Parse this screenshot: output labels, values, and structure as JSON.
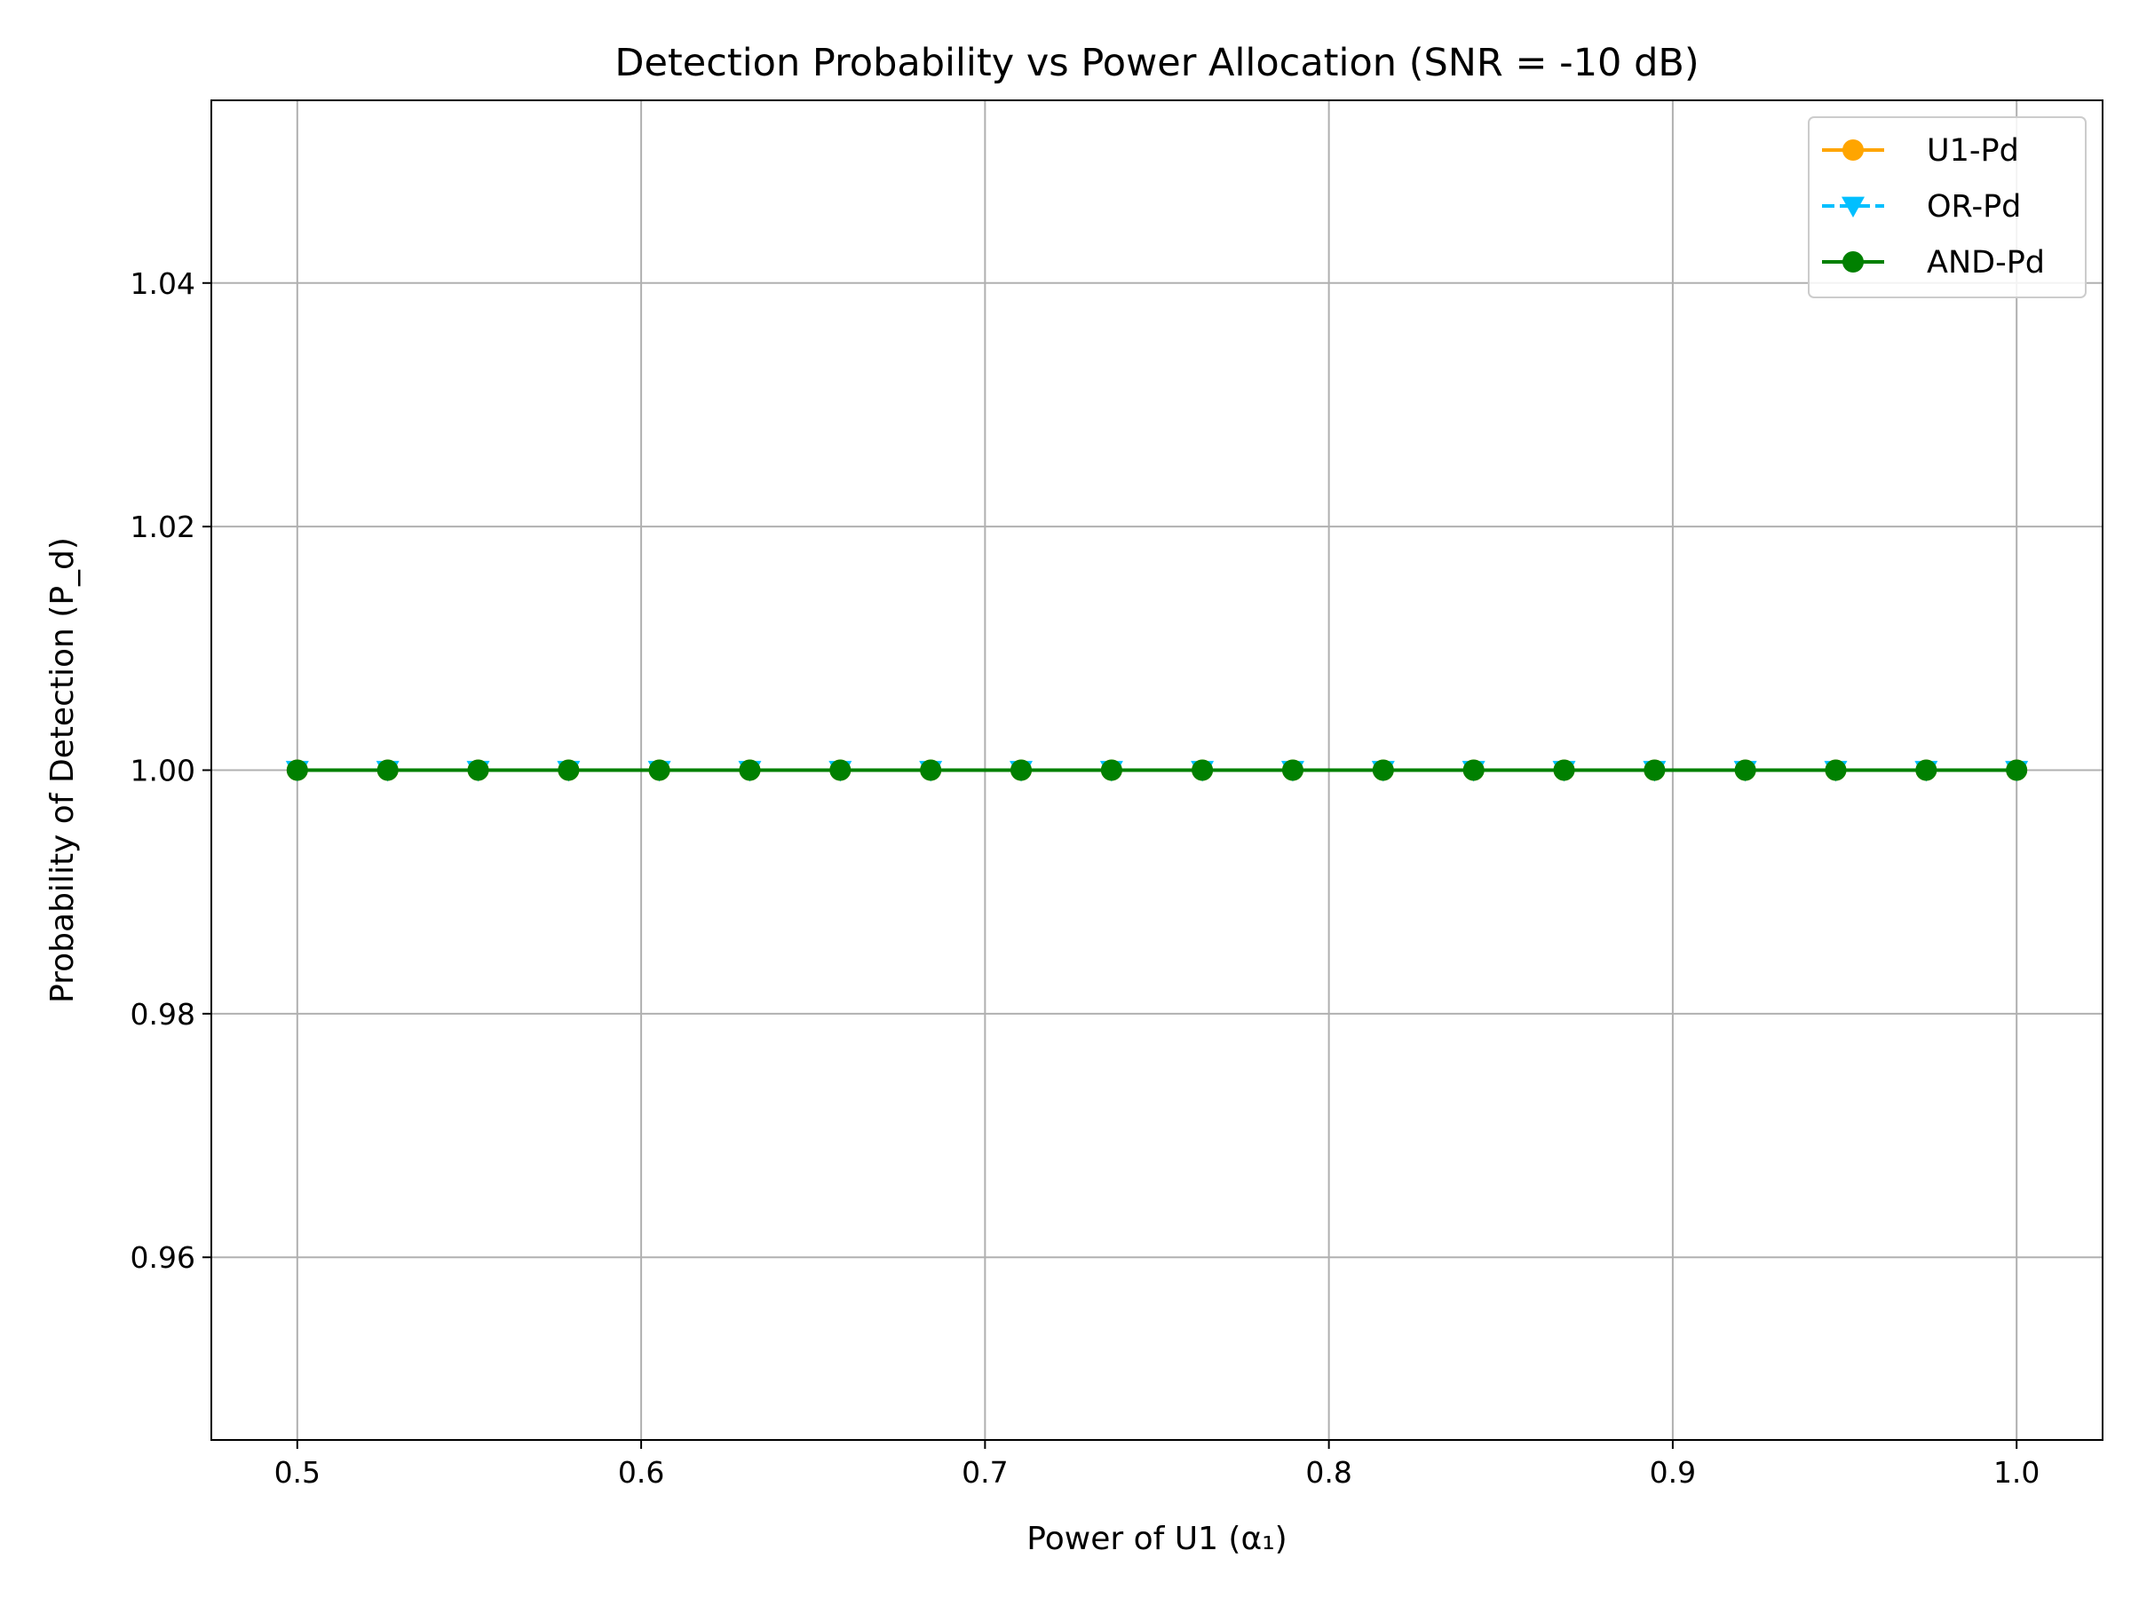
{
  "chart_data": {
    "type": "line",
    "title": "Detection Probability vs Power Allocation (SNR = -10 dB)",
    "xlabel": "Power of U1 (α₁)",
    "ylabel": "Probability of Detection (P_d)",
    "xlim": [
      0.475,
      1.025
    ],
    "ylim": [
      0.945,
      1.055
    ],
    "xticks": [
      0.5,
      0.6,
      0.7,
      0.8,
      0.9,
      1.0
    ],
    "xtick_labels": [
      "0.5",
      "0.6",
      "0.7",
      "0.8",
      "0.9",
      "1.0"
    ],
    "yticks": [
      0.96,
      0.98,
      1.0,
      1.02,
      1.04
    ],
    "ytick_labels": [
      "0.96",
      "0.98",
      "1.00",
      "1.02",
      "1.04"
    ],
    "grid": true,
    "legend_position": "top-right",
    "x": [
      0.5,
      0.5263,
      0.5526,
      0.5789,
      0.6053,
      0.6316,
      0.6579,
      0.6842,
      0.7105,
      0.7368,
      0.7632,
      0.7895,
      0.8158,
      0.8421,
      0.8684,
      0.8947,
      0.9211,
      0.9474,
      0.9737,
      1.0
    ],
    "series": [
      {
        "name": "U1-Pd",
        "color": "#FFA500",
        "marker": "circle",
        "linestyle": "solid",
        "values": [
          1,
          1,
          1,
          1,
          1,
          1,
          1,
          1,
          1,
          1,
          1,
          1,
          1,
          1,
          1,
          1,
          1,
          1,
          1,
          1
        ]
      },
      {
        "name": "OR-Pd",
        "color": "#00BFFF",
        "marker": "triangle-down",
        "linestyle": "dashed",
        "values": [
          1,
          1,
          1,
          1,
          1,
          1,
          1,
          1,
          1,
          1,
          1,
          1,
          1,
          1,
          1,
          1,
          1,
          1,
          1,
          1
        ]
      },
      {
        "name": "AND-Pd",
        "color": "#008000",
        "marker": "circle",
        "linestyle": "solid",
        "values": [
          1,
          1,
          1,
          1,
          1,
          1,
          1,
          1,
          1,
          1,
          1,
          1,
          1,
          1,
          1,
          1,
          1,
          1,
          1,
          1
        ]
      }
    ]
  }
}
